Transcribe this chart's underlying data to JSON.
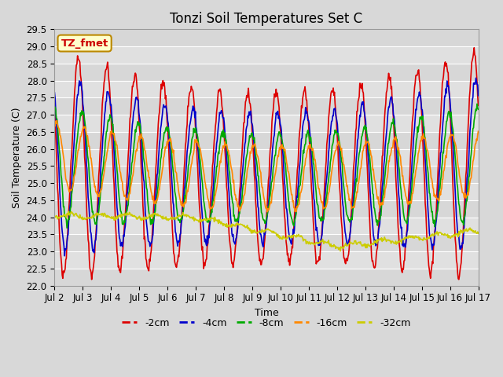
{
  "title": "Tonzi Soil Temperatures Set C",
  "xlabel": "Time",
  "ylabel": "Soil Temperature (C)",
  "ylim": [
    22.0,
    29.5
  ],
  "yticks": [
    22.0,
    22.5,
    23.0,
    23.5,
    24.0,
    24.5,
    25.0,
    25.5,
    26.0,
    26.5,
    27.0,
    27.5,
    28.0,
    28.5,
    29.0,
    29.5
  ],
  "xtick_labels": [
    "Jul 2",
    "Jul 3",
    "Jul 4",
    "Jul 5",
    "Jul 6",
    "Jul 7",
    "Jul 8",
    "Jul 9",
    "Jul 10",
    "Jul 11",
    "Jul 12",
    "Jul 13",
    "Jul 14",
    "Jul 15",
    "Jul 16",
    "Jul 17"
  ],
  "annotation_text": "TZ_fmet",
  "annotation_bg": "#ffffcc",
  "annotation_border": "#bb8800",
  "annotation_text_color": "#cc0000",
  "line_colors": [
    "#dd0000",
    "#0000cc",
    "#00aa00",
    "#ff8800",
    "#cccc00"
  ],
  "line_labels": [
    "-2cm",
    "-4cm",
    "-8cm",
    "-16cm",
    "-32cm"
  ],
  "line_width": 1.2,
  "bg_color": "#d8d8d8",
  "plot_bg_color": "#e0e0e0",
  "grid_color": "#ffffff",
  "title_fontsize": 12,
  "label_fontsize": 9,
  "tick_fontsize": 8.5,
  "legend_fontsize": 9
}
